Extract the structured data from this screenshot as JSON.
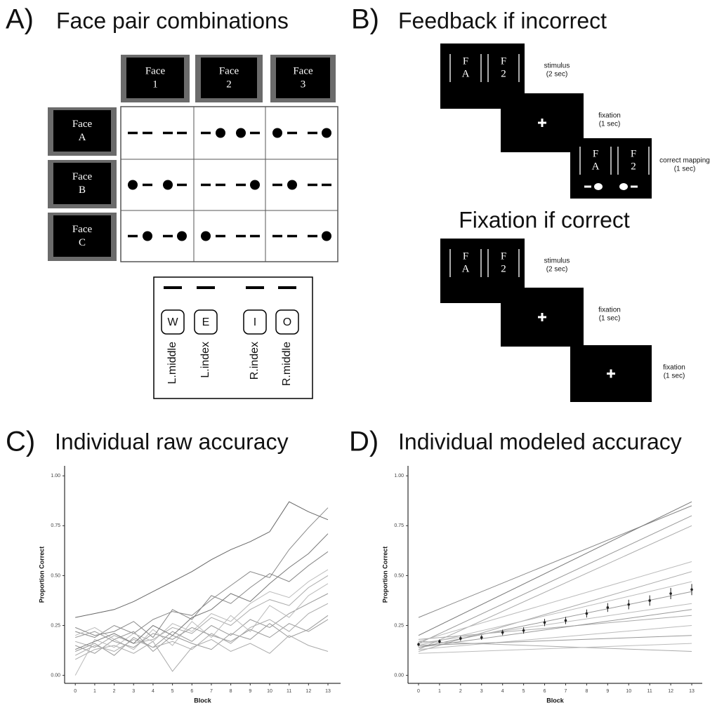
{
  "panel_a": {
    "panel_label": "A)",
    "title": "Face pair combinations",
    "columns": [
      [
        "Face",
        "1"
      ],
      [
        "Face",
        "2"
      ],
      [
        "Face",
        "3"
      ]
    ],
    "rows": [
      [
        "Face",
        "A"
      ],
      [
        "Face",
        "B"
      ],
      [
        "Face",
        "C"
      ]
    ],
    "keys": [
      {
        "key": "W",
        "finger": "L.middle"
      },
      {
        "key": "E",
        "finger": "L.index"
      },
      {
        "key": "I",
        "finger": "R.index"
      },
      {
        "key": "O",
        "finger": "R.middle"
      }
    ]
  },
  "panel_b": {
    "panel_label": "B)",
    "title": "Feedback if incorrect",
    "subtitle": "Fixation if correct",
    "left_face": [
      "F",
      "A"
    ],
    "right_face": [
      "F",
      "2"
    ],
    "steps_incorrect": [
      {
        "label": "stimulus",
        "duration": "(2 sec)"
      },
      {
        "label": "fixation",
        "duration": "(1 sec)"
      },
      {
        "label": "correct mapping",
        "duration": "(1 sec)"
      }
    ],
    "steps_correct": [
      {
        "label": "stimulus",
        "duration": "(2 sec)"
      },
      {
        "label": "fixation",
        "duration": "(1 sec)"
      },
      {
        "label": "fixation",
        "duration": "(1 sec)"
      }
    ]
  },
  "chart_data": [
    {
      "type": "line",
      "panel_label": "C)",
      "title": "Individual raw accuracy",
      "xlabel": "Block",
      "ylabel": "Proportion Correct",
      "x": [
        0,
        1,
        2,
        3,
        4,
        5,
        6,
        7,
        8,
        9,
        10,
        11,
        12,
        13
      ],
      "xlim": [
        -0.55,
        13.65
      ],
      "ylim": [
        -0.04,
        1.05
      ],
      "xticks": [
        0,
        1,
        2,
        3,
        4,
        5,
        6,
        7,
        8,
        9,
        10,
        11,
        12,
        13
      ],
      "yticks": [
        {
          "value": 0,
          "label": "0.00"
        },
        0.25,
        {
          "value": 0.5,
          "label": "0.50"
        },
        0.75,
        {
          "value": 1,
          "label": "1.00"
        }
      ],
      "series": [
        {
          "color": "#666",
          "values": [
            0.29,
            0.31,
            0.33,
            0.37,
            0.42,
            0.47,
            0.52,
            0.58,
            0.63,
            0.67,
            0.72,
            0.87,
            0.82,
            0.78
          ]
        },
        {
          "color": "#888",
          "values": [
            0.22,
            0.19,
            0.25,
            0.21,
            0.28,
            0.32,
            0.3,
            0.38,
            0.45,
            0.52,
            0.49,
            0.63,
            0.74,
            0.84
          ]
        },
        {
          "color": "#aaa",
          "values": [
            0.17,
            0.14,
            0.2,
            0.16,
            0.18,
            0.24,
            0.21,
            0.29,
            0.25,
            0.33,
            0.38,
            0.35,
            0.44,
            0.5
          ]
        },
        {
          "color": "#999",
          "values": [
            0.12,
            0.16,
            0.1,
            0.19,
            0.14,
            0.22,
            0.17,
            0.25,
            0.2,
            0.28,
            0.24,
            0.31,
            0.36,
            0.41
          ]
        },
        {
          "color": "#bbb",
          "values": [
            0.2,
            0.24,
            0.18,
            0.13,
            0.23,
            0.15,
            0.27,
            0.19,
            0.3,
            0.22,
            0.35,
            0.29,
            0.4,
            0.46
          ]
        },
        {
          "color": "#999",
          "values": [
            0.15,
            0.11,
            0.18,
            0.22,
            0.12,
            0.2,
            0.16,
            0.13,
            0.21,
            0.18,
            0.26,
            0.19,
            0.23,
            0.3
          ]
        },
        {
          "color": "#aaa",
          "values": [
            0.08,
            0.13,
            0.15,
            0.11,
            0.17,
            0.02,
            0.14,
            0.18,
            0.12,
            0.16,
            0.11,
            0.2,
            0.15,
            0.12
          ]
        },
        {
          "color": "#888",
          "values": [
            0.24,
            0.2,
            0.22,
            0.27,
            0.19,
            0.33,
            0.28,
            0.4,
            0.36,
            0.44,
            0.51,
            0.47,
            0.55,
            0.62
          ]
        },
        {
          "color": "#bbb",
          "values": [
            0.0,
            0.18,
            0.14,
            0.21,
            0.17,
            0.26,
            0.22,
            0.31,
            0.27,
            0.36,
            0.42,
            0.39,
            0.47,
            0.53
          ]
        },
        {
          "color": "#999",
          "values": [
            0.19,
            0.22,
            0.17,
            0.14,
            0.21,
            0.18,
            0.24,
            0.2,
            0.17,
            0.23,
            0.19,
            0.26,
            0.22,
            0.28
          ]
        },
        {
          "color": "#777",
          "values": [
            0.13,
            0.17,
            0.21,
            0.16,
            0.25,
            0.2,
            0.29,
            0.33,
            0.41,
            0.37,
            0.46,
            0.54,
            0.61,
            0.71
          ]
        },
        {
          "color": "#aaa",
          "values": [
            0.1,
            0.15,
            0.12,
            0.18,
            0.14,
            0.17,
            0.13,
            0.21,
            0.16,
            0.24,
            0.28,
            0.22,
            0.31,
            0.36
          ]
        }
      ]
    },
    {
      "type": "line",
      "panel_label": "D)",
      "title": "Individual modeled accuracy",
      "xlabel": "Block",
      "ylabel": "Proportion Correct",
      "xlim": [
        -0.5,
        13.5
      ],
      "ylim": [
        -0.04,
        1.05
      ],
      "xticks": [
        0,
        1,
        2,
        3,
        4,
        5,
        6,
        7,
        8,
        9,
        10,
        11,
        12,
        13
      ],
      "yticks": [
        {
          "value": 0,
          "label": "0.00"
        },
        0.25,
        {
          "value": 0.5,
          "label": "0.50"
        },
        0.75,
        {
          "value": 1,
          "label": "1.00"
        }
      ],
      "series": [
        {
          "color": "#888",
          "x": [
            0,
            13
          ],
          "values": [
            0.29,
            0.85
          ]
        },
        {
          "color": "#777",
          "x": [
            0,
            13
          ],
          "values": [
            0.2,
            0.87
          ]
        },
        {
          "color": "#999",
          "x": [
            0,
            13
          ],
          "values": [
            0.16,
            0.8
          ]
        },
        {
          "color": "#aaa",
          "x": [
            0,
            13
          ],
          "values": [
            0.13,
            0.75
          ]
        },
        {
          "color": "#bbb",
          "x": [
            0,
            13
          ],
          "values": [
            0.17,
            0.57
          ]
        },
        {
          "color": "#aaa",
          "x": [
            0,
            13
          ],
          "values": [
            0.12,
            0.52
          ]
        },
        {
          "color": "#bbb",
          "x": [
            0,
            13
          ],
          "values": [
            0.15,
            0.47
          ]
        },
        {
          "color": "#999",
          "x": [
            0,
            13
          ],
          "values": [
            0.14,
            0.42
          ]
        },
        {
          "color": "#bbb",
          "x": [
            0,
            13
          ],
          "values": [
            0.16,
            0.36
          ]
        },
        {
          "color": "#aaa",
          "x": [
            0,
            13
          ],
          "values": [
            0.18,
            0.3
          ]
        },
        {
          "color": "#bbb",
          "x": [
            0,
            13
          ],
          "values": [
            0.13,
            0.25
          ]
        },
        {
          "color": "#999",
          "x": [
            0,
            13
          ],
          "values": [
            0.15,
            0.2
          ]
        },
        {
          "color": "#aaa",
          "x": [
            0,
            13
          ],
          "values": [
            0.17,
            0.12
          ]
        },
        {
          "color": "#bbb",
          "x": [
            0,
            13
          ],
          "values": [
            0.11,
            0.16
          ]
        },
        {
          "color": "#999",
          "x": [
            0,
            13
          ],
          "values": [
            0.14,
            0.33
          ]
        },
        {
          "color": "#222",
          "x": [
            0,
            1,
            2,
            3,
            4,
            5,
            6,
            7,
            8,
            9,
            10,
            11,
            12,
            13
          ],
          "values": [
            0.155,
            0.17,
            0.185,
            0.19,
            0.215,
            0.225,
            0.265,
            0.275,
            0.31,
            0.34,
            0.355,
            0.375,
            0.41,
            0.43
          ],
          "errors": [
            0.01,
            0.01,
            0.012,
            0.012,
            0.014,
            0.016,
            0.018,
            0.018,
            0.02,
            0.022,
            0.024,
            0.026,
            0.028,
            0.028
          ]
        }
      ]
    }
  ]
}
